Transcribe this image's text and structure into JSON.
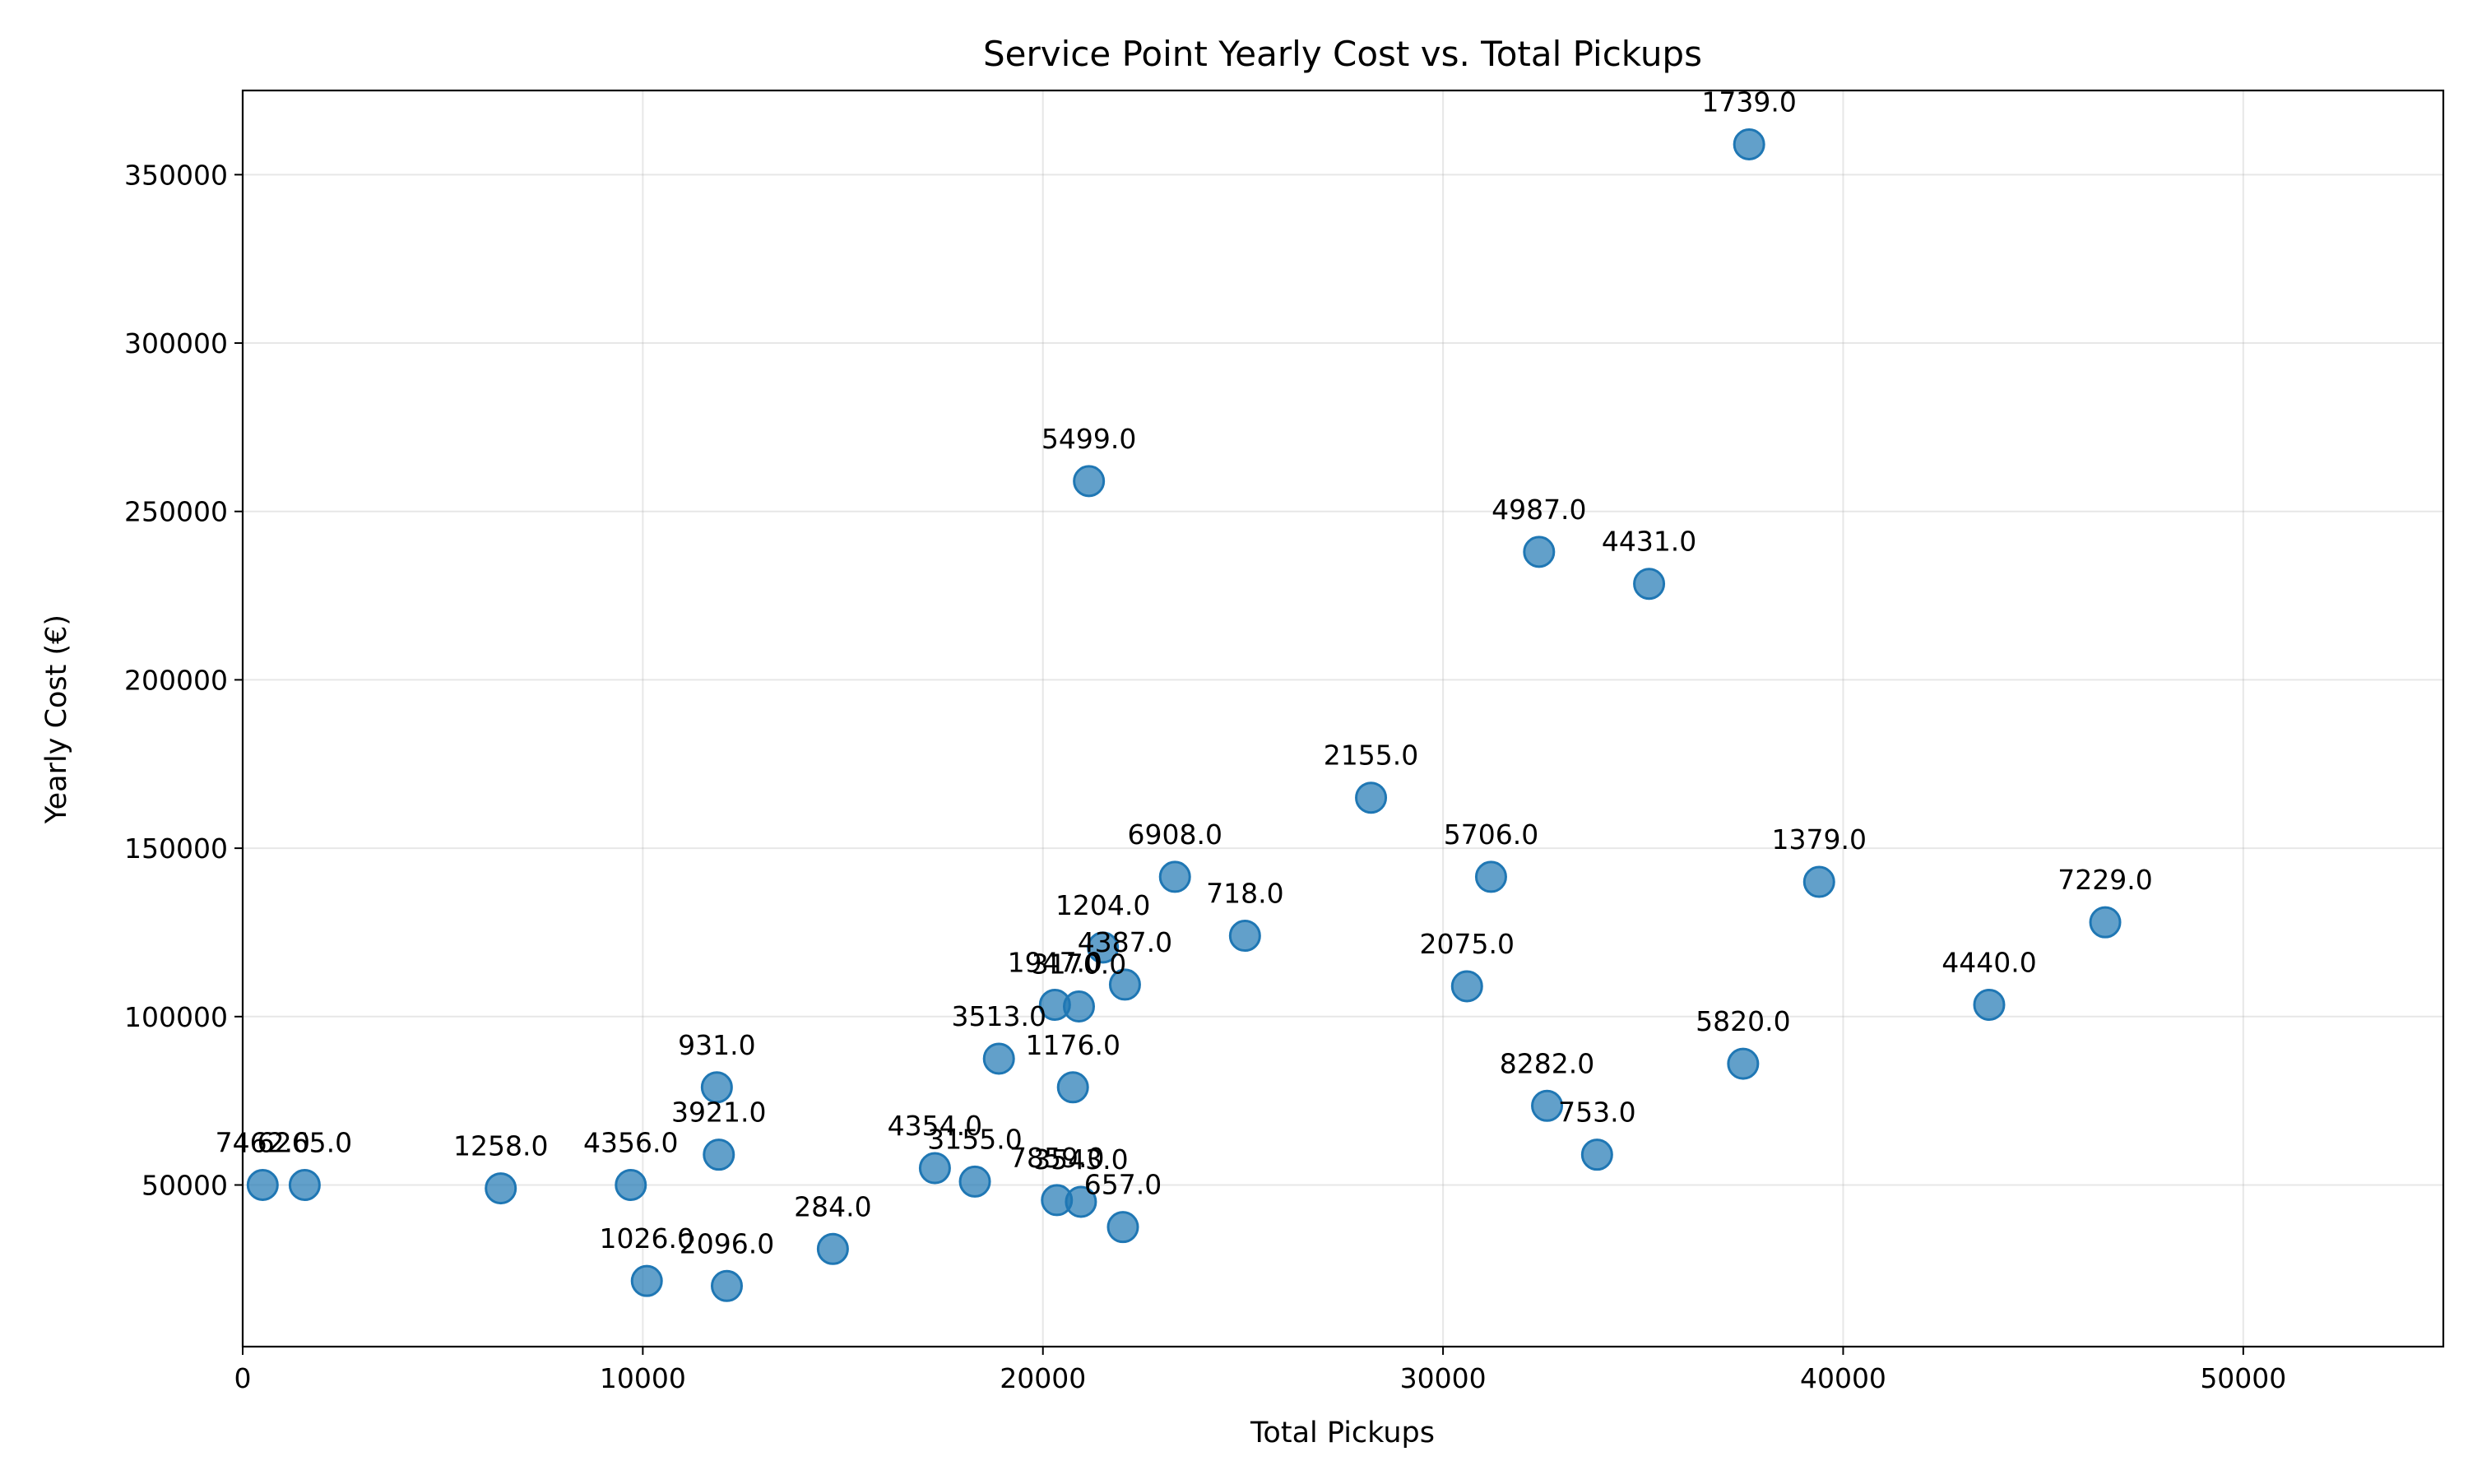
{
  "chart_data": {
    "type": "scatter",
    "title": "Service Point Yearly Cost vs. Total Pickups",
    "xlabel": "Total Pickups",
    "ylabel": "Yearly Cost (€)",
    "xlim": [
      0,
      55000
    ],
    "ylim": [
      2000,
      375000
    ],
    "x_ticks": [
      0,
      10000,
      20000,
      30000,
      40000,
      50000
    ],
    "y_ticks": [
      50000,
      100000,
      150000,
      200000,
      250000,
      300000,
      350000
    ],
    "grid": true,
    "color": "#1f77b4",
    "points": [
      {
        "x": 500,
        "y": 50000,
        "label": "7462.0"
      },
      {
        "x": 1550,
        "y": 50000,
        "label": "6265.0"
      },
      {
        "x": 6450,
        "y": 49000,
        "label": "1258.0"
      },
      {
        "x": 9700,
        "y": 50000,
        "label": "4356.0"
      },
      {
        "x": 10100,
        "y": 21500,
        "label": "1026.0"
      },
      {
        "x": 11850,
        "y": 79000,
        "label": "931.0"
      },
      {
        "x": 11900,
        "y": 59000,
        "label": "3921.0"
      },
      {
        "x": 12100,
        "y": 20000,
        "label": "2096.0"
      },
      {
        "x": 14750,
        "y": 31000,
        "label": "284.0"
      },
      {
        "x": 17300,
        "y": 55000,
        "label": "4354.0"
      },
      {
        "x": 18300,
        "y": 51000,
        "label": "3155.0"
      },
      {
        "x": 18900,
        "y": 87500,
        "label": "3513.0"
      },
      {
        "x": 20300,
        "y": 103500,
        "label": "1947.0"
      },
      {
        "x": 20350,
        "y": 45500,
        "label": "7859.0"
      },
      {
        "x": 20750,
        "y": 79000,
        "label": "1176.0"
      },
      {
        "x": 20900,
        "y": 103000,
        "label": "3170.0"
      },
      {
        "x": 20950,
        "y": 45000,
        "label": "3543.0"
      },
      {
        "x": 21500,
        "y": 120500,
        "label": "1204.0"
      },
      {
        "x": 22000,
        "y": 37500,
        "label": "657.0"
      },
      {
        "x": 22050,
        "y": 109500,
        "label": "4387.0"
      },
      {
        "x": 21150,
        "y": 259000,
        "label": "5499.0"
      },
      {
        "x": 23300,
        "y": 141500,
        "label": "6908.0"
      },
      {
        "x": 25050,
        "y": 124000,
        "label": "718.0"
      },
      {
        "x": 28200,
        "y": 165000,
        "label": "2155.0"
      },
      {
        "x": 30600,
        "y": 109000,
        "label": "2075.0"
      },
      {
        "x": 31200,
        "y": 141500,
        "label": "5706.0"
      },
      {
        "x": 32400,
        "y": 238000,
        "label": "4987.0"
      },
      {
        "x": 32600,
        "y": 73500,
        "label": "8282.0"
      },
      {
        "x": 33850,
        "y": 59000,
        "label": "753.0"
      },
      {
        "x": 35150,
        "y": 228500,
        "label": "4431.0"
      },
      {
        "x": 37500,
        "y": 86000,
        "label": "5820.0"
      },
      {
        "x": 37650,
        "y": 359000,
        "label": "1739.0"
      },
      {
        "x": 39400,
        "y": 140000,
        "label": "1379.0"
      },
      {
        "x": 43650,
        "y": 103500,
        "label": "4440.0"
      },
      {
        "x": 46550,
        "y": 128000,
        "label": "7229.0"
      }
    ]
  }
}
